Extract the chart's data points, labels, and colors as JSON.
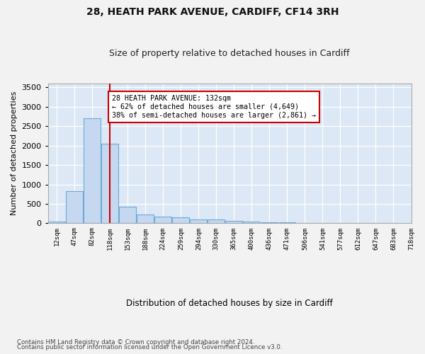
{
  "title1": "28, HEATH PARK AVENUE, CARDIFF, CF14 3RH",
  "title2": "Size of property relative to detached houses in Cardiff",
  "xlabel": "Distribution of detached houses by size in Cardiff",
  "ylabel": "Number of detached properties",
  "bar_color": "#c5d8f0",
  "bar_edge_color": "#6baad8",
  "background_color": "#dce8f5",
  "grid_color": "#ffffff",
  "vline_color": "#cc0000",
  "annotation_text1": "28 HEATH PARK AVENUE: 132sqm",
  "annotation_text2": "← 62% of detached houses are smaller (4,649)",
  "annotation_text3": "38% of semi-detached houses are larger (2,861) →",
  "annotation_box_color": "#ffffff",
  "annotation_box_edge": "#cc0000",
  "property_line_x": 3,
  "bins_left": [
    0,
    1,
    2,
    3,
    4,
    5,
    6,
    7,
    8,
    9,
    10,
    11,
    12,
    13,
    14,
    15,
    16,
    17,
    18,
    19
  ],
  "bin_labels": [
    "12sqm",
    "47sqm",
    "82sqm",
    "118sqm",
    "153sqm",
    "188sqm",
    "224sqm",
    "259sqm",
    "294sqm",
    "330sqm",
    "365sqm",
    "400sqm",
    "436sqm",
    "471sqm",
    "506sqm",
    "541sqm",
    "577sqm",
    "612sqm",
    "647sqm",
    "683sqm",
    "718sqm"
  ],
  "counts": [
    40,
    830,
    2700,
    2050,
    430,
    230,
    170,
    145,
    105,
    95,
    65,
    50,
    30,
    30,
    0,
    0,
    0,
    0,
    0,
    0
  ],
  "ylim": [
    0,
    3600
  ],
  "yticks": [
    0,
    500,
    1000,
    1500,
    2000,
    2500,
    3000,
    3500
  ],
  "fig_bg": "#f2f2f2",
  "footnote1": "Contains HM Land Registry data © Crown copyright and database right 2024.",
  "footnote2": "Contains public sector information licensed under the Open Government Licence v3.0."
}
